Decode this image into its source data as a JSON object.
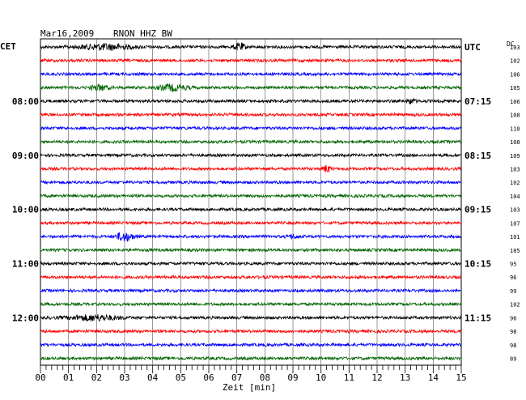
{
  "header": {
    "date": "Mar16,2009",
    "station": "RNON HHZ BW",
    "left_timezone": "CET",
    "right_timezone": "UTC",
    "dc_label": "DC"
  },
  "colors": {
    "cycle": [
      "#000000",
      "#ff0000",
      "#0000ff",
      "#006400"
    ],
    "grid": "#000000",
    "background": "#ffffff"
  },
  "chart_data": {
    "type": "line",
    "title": "Mar16,2009 RNON HHZ BW",
    "xlabel": "Zeit [min]",
    "ylabel": "",
    "xlim": [
      0,
      15
    ],
    "x_ticks": [
      "00",
      "01",
      "02",
      "03",
      "04",
      "05",
      "06",
      "07",
      "08",
      "09",
      "10",
      "11",
      "12",
      "13",
      "14",
      "15"
    ],
    "grid": true,
    "trace_count": 24,
    "trace_minutes": 15,
    "left_time_labels": [
      {
        "trace": 4,
        "label": "08:00"
      },
      {
        "trace": 8,
        "label": "09:00"
      },
      {
        "trace": 12,
        "label": "10:00"
      },
      {
        "trace": 16,
        "label": "11:00"
      },
      {
        "trace": 20,
        "label": "12:00"
      }
    ],
    "right_time_labels": [
      {
        "trace": 0,
        "label": "UTC"
      },
      {
        "trace": 4,
        "label": "07:15"
      },
      {
        "trace": 8,
        "label": "08:15"
      },
      {
        "trace": 12,
        "label": "09:15"
      },
      {
        "trace": 16,
        "label": "10:15"
      },
      {
        "trace": 20,
        "label": "11:15"
      }
    ],
    "dc_offsets": [
      103,
      102,
      106,
      105,
      106,
      108,
      110,
      108,
      109,
      103,
      102,
      104,
      103,
      107,
      101,
      105,
      95,
      96,
      99,
      102,
      96,
      98,
      98,
      89
    ]
  }
}
